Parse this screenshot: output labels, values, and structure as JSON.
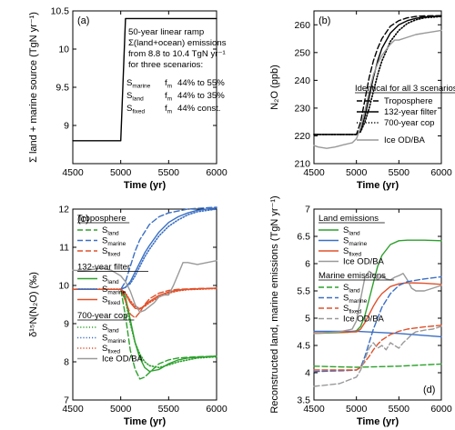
{
  "colors": {
    "land": "#2ca02c",
    "marine": "#3a6fc4",
    "fixed": "#e0502a",
    "ice": "#999999",
    "black": "#000000"
  },
  "chart_data": [
    {
      "panel": "(a)",
      "type": "line",
      "ylabel": "Σ land + marine source  (TgN yr⁻¹)",
      "xlabel": "Time (yr)",
      "xlim": [
        4500,
        6000
      ],
      "ylim": [
        8.5,
        10.5
      ],
      "xticks": [
        "4500",
        "5000",
        "5500",
        "6000"
      ],
      "yticks": [
        "9",
        "9.5",
        "10",
        "10.5"
      ],
      "series": [
        {
          "x": [
            4500,
            5000,
            5050,
            6000
          ],
          "y": [
            8.8,
            8.8,
            10.4,
            10.4
          ]
        }
      ],
      "annotation": {
        "lines": [
          "50-year linear ramp",
          "Σ(land+ocean) emissions",
          "from 8.8 to 10.4 TgN yr⁻¹",
          "for three scenarios:"
        ],
        "rows": [
          {
            "s": "S",
            "sub": "marine",
            "f": "f",
            "fsub": "m",
            "val": "44% to 55%"
          },
          {
            "s": "S",
            "sub": "land",
            "f": "f",
            "fsub": "m",
            "val": "44% to 35%"
          },
          {
            "s": "S",
            "sub": "fixed",
            "f": "f",
            "fsub": "m",
            "val": "44% const."
          }
        ]
      }
    },
    {
      "panel": "(b)",
      "type": "line",
      "ylabel": "N₂O (ppb)",
      "xlabel": "Time (yr)",
      "xlim": [
        4500,
        6000
      ],
      "ylim": [
        210,
        265
      ],
      "xticks": [
        "4500",
        "5000",
        "5500",
        "6000"
      ],
      "yticks": [
        "210",
        "220",
        "230",
        "240",
        "250",
        "260"
      ],
      "legend_title": "Identical for all 3 scenarios",
      "series": [
        {
          "name": "Troposphere",
          "style": "dashed",
          "x": [
            4500,
            5000,
            5050,
            5100,
            5150,
            5200,
            5250,
            5300,
            5400,
            5500,
            5600,
            5700,
            5800,
            6000
          ],
          "y": [
            220.5,
            220.5,
            225,
            233,
            241,
            247,
            251.5,
            255,
            259.5,
            261.5,
            262.5,
            263,
            263.2,
            263.3
          ]
        },
        {
          "name": "132-year filter",
          "style": "solid",
          "x": [
            4500,
            5000,
            5050,
            5100,
            5150,
            5200,
            5250,
            5300,
            5400,
            5500,
            5600,
            5700,
            5800,
            6000
          ],
          "y": [
            220.5,
            220.5,
            222,
            227,
            234,
            241,
            247,
            251.5,
            257,
            260,
            261.5,
            262.3,
            262.8,
            263.2
          ]
        },
        {
          "name": "700-year cop",
          "style": "dotted",
          "x": [
            4500,
            5000,
            5050,
            5100,
            5150,
            5200,
            5250,
            5300,
            5400,
            5500,
            5600,
            5700,
            5800,
            6000
          ],
          "y": [
            220.5,
            220.5,
            221.5,
            225,
            230,
            236,
            242,
            247,
            254,
            258,
            260.5,
            261.8,
            262.5,
            263
          ]
        },
        {
          "name": "Ice OD/BA",
          "style": "solid-gray",
          "x": [
            4500,
            4550,
            4650,
            4750,
            4850,
            4950,
            5000,
            5050,
            5100,
            5150,
            5200,
            5250,
            5300,
            5350,
            5400,
            5450,
            5500,
            5600,
            5700,
            5800,
            5900,
            6000
          ],
          "y": [
            216.5,
            216,
            215.5,
            216,
            216.8,
            217.5,
            219,
            223,
            229,
            236,
            242,
            246,
            249,
            251,
            253,
            254.5,
            254.5,
            255.5,
            256.5,
            257,
            257.5,
            258
          ]
        }
      ]
    },
    {
      "panel": "(c)",
      "type": "line",
      "ylabel": "δ¹⁵N(N₂O)  (‰)",
      "xlabel": "Time (yr)",
      "xlim": [
        4500,
        6000
      ],
      "ylim": [
        7,
        12
      ],
      "xticks": [
        "4500",
        "5000",
        "5500",
        "6000"
      ],
      "yticks": [
        "7",
        "8",
        "9",
        "10",
        "11",
        "12"
      ],
      "legend_groups": [
        {
          "title": "Troposphere",
          "style": "dashed",
          "items": [
            {
              "s": "S",
              "sub": "land"
            },
            {
              "s": "S",
              "sub": "marine"
            },
            {
              "s": "S",
              "sub": "fixed"
            }
          ]
        },
        {
          "title": "132-year filter",
          "style": "solid",
          "items": [
            {
              "s": "S",
              "sub": "land"
            },
            {
              "s": "S",
              "sub": "marine"
            },
            {
              "s": "S",
              "sub": "fixed"
            }
          ]
        },
        {
          "title": "700-year cop",
          "style": "dotted",
          "items": [
            {
              "s": "S",
              "sub": "land"
            },
            {
              "s": "S",
              "sub": "marine"
            },
            {
              "s": "S",
              "sub": "fixed"
            },
            {
              "s": "Ice OD/BA",
              "sub": ""
            }
          ]
        }
      ],
      "series": [
        {
          "scenario": "land",
          "style": "dashed",
          "x": [
            4500,
            5000,
            5050,
            5100,
            5150,
            5200,
            5250,
            5300,
            5400,
            5500,
            5600,
            5700,
            5800,
            6000
          ],
          "y": [
            9.9,
            9.9,
            9.2,
            8.3,
            7.8,
            7.55,
            7.6,
            7.72,
            7.95,
            8.05,
            8.1,
            8.12,
            8.13,
            8.15
          ]
        },
        {
          "scenario": "land",
          "style": "solid",
          "x": [
            4500,
            5000,
            5050,
            5100,
            5150,
            5200,
            5250,
            5300,
            5400,
            5500,
            5600,
            5700,
            5800,
            6000
          ],
          "y": [
            9.9,
            9.9,
            9.7,
            9.1,
            8.5,
            8.1,
            7.85,
            7.75,
            7.8,
            7.95,
            8.05,
            8.1,
            8.12,
            8.15
          ]
        },
        {
          "scenario": "land",
          "style": "dotted",
          "x": [
            4500,
            5000,
            5050,
            5100,
            5150,
            5200,
            5250,
            5300,
            5400,
            5500,
            5600,
            5700,
            5800,
            6000
          ],
          "y": [
            9.9,
            9.9,
            9.6,
            9.0,
            8.5,
            8.2,
            8.0,
            7.9,
            7.85,
            7.92,
            8.0,
            8.05,
            8.1,
            8.13
          ]
        },
        {
          "scenario": "marine",
          "style": "dashed",
          "x": [
            4500,
            5000,
            5050,
            5100,
            5150,
            5200,
            5250,
            5300,
            5400,
            5500,
            5600,
            5700,
            5800,
            6000
          ],
          "y": [
            9.9,
            9.9,
            10.1,
            10.5,
            10.9,
            11.2,
            11.4,
            11.6,
            11.8,
            11.9,
            11.95,
            12.0,
            12.02,
            12.05
          ]
        },
        {
          "scenario": "marine",
          "style": "solid",
          "x": [
            4500,
            5000,
            5050,
            5100,
            5150,
            5200,
            5250,
            5300,
            5400,
            5500,
            5600,
            5700,
            5800,
            6000
          ],
          "y": [
            9.9,
            9.9,
            9.95,
            10.1,
            10.35,
            10.6,
            10.85,
            11.05,
            11.4,
            11.65,
            11.8,
            11.9,
            11.97,
            12.03
          ]
        },
        {
          "scenario": "marine",
          "style": "dotted",
          "x": [
            4500,
            5000,
            5050,
            5100,
            5150,
            5200,
            5250,
            5300,
            5400,
            5500,
            5600,
            5700,
            5800,
            6000
          ],
          "y": [
            9.9,
            9.9,
            9.95,
            10.05,
            10.25,
            10.5,
            10.75,
            10.95,
            11.3,
            11.55,
            11.72,
            11.85,
            11.93,
            12.0
          ]
        },
        {
          "scenario": "fixed",
          "style": "dashed",
          "x": [
            4500,
            5000,
            5050,
            5100,
            5150,
            5200,
            5250,
            5300,
            5400,
            5500,
            5600,
            5700,
            5800,
            6000
          ],
          "y": [
            9.9,
            9.9,
            9.6,
            9.25,
            9.15,
            9.3,
            9.5,
            9.65,
            9.8,
            9.87,
            9.9,
            9.91,
            9.92,
            9.93
          ]
        },
        {
          "scenario": "fixed",
          "style": "solid",
          "x": [
            4500,
            5000,
            5050,
            5100,
            5150,
            5200,
            5250,
            5300,
            5400,
            5500,
            5600,
            5700,
            5800,
            6000
          ],
          "y": [
            9.9,
            9.9,
            9.78,
            9.55,
            9.4,
            9.38,
            9.48,
            9.58,
            9.74,
            9.83,
            9.88,
            9.9,
            9.91,
            9.93
          ]
        },
        {
          "scenario": "fixed",
          "style": "dotted",
          "x": [
            4500,
            5000,
            5050,
            5100,
            5150,
            5200,
            5250,
            5300,
            5400,
            5500,
            5600,
            5700,
            5800,
            6000
          ],
          "y": [
            9.9,
            9.9,
            9.8,
            9.6,
            9.45,
            9.4,
            9.45,
            9.55,
            9.7,
            9.8,
            9.86,
            9.89,
            9.9,
            9.92
          ]
        },
        {
          "scenario": "ice",
          "style": "solid-gray",
          "x": [
            4500,
            4600,
            4700,
            4800,
            4900,
            5000,
            5050,
            5100,
            5150,
            5200,
            5250,
            5300,
            5350,
            5400,
            5450,
            5500,
            5550,
            5600,
            5650,
            5700,
            5800,
            5900,
            6000
          ],
          "y": [
            10.4,
            10.38,
            10.42,
            10.45,
            10.4,
            10.25,
            10.1,
            9.85,
            9.5,
            9.3,
            9.35,
            9.45,
            9.55,
            9.7,
            9.75,
            9.75,
            10.0,
            10.3,
            10.6,
            10.6,
            10.55,
            10.6,
            10.65
          ]
        }
      ]
    },
    {
      "panel": "(d)",
      "type": "line",
      "ylabel": "Reconstructed land, marine emissions (TgN yr⁻¹)",
      "xlabel": "Time (yr)",
      "xlim": [
        4500,
        6000
      ],
      "ylim": [
        3.5,
        7
      ],
      "xticks": [
        "4500",
        "5000",
        "5500",
        "6000"
      ],
      "yticks": [
        "3.5",
        "4",
        "4.5",
        "5",
        "5.5",
        "6",
        "6.5",
        "7"
      ],
      "legend_groups": [
        {
          "title": "Land emissions",
          "style": "solid",
          "items": [
            {
              "s": "S",
              "sub": "land"
            },
            {
              "s": "S",
              "sub": "marine"
            },
            {
              "s": "S",
              "sub": "fixed"
            },
            {
              "s": "Ice OD/BA",
              "sub": ""
            }
          ]
        },
        {
          "title": "Marine emissions",
          "style": "dashed",
          "items": [
            {
              "s": "S",
              "sub": "land"
            },
            {
              "s": "S",
              "sub": "marine"
            },
            {
              "s": "S",
              "sub": "fixed"
            },
            {
              "s": "Ice OD/BA",
              "sub": ""
            }
          ]
        }
      ],
      "series": [
        {
          "scenario": "land",
          "style": "solid",
          "x": [
            4500,
            4900,
            5000,
            5050,
            5100,
            5150,
            5200,
            5250,
            5300,
            5400,
            5500,
            5600,
            5800,
            6000
          ],
          "y": [
            4.72,
            4.74,
            4.77,
            4.85,
            5.05,
            5.35,
            5.65,
            5.95,
            6.15,
            6.35,
            6.42,
            6.43,
            6.43,
            6.42
          ]
        },
        {
          "scenario": "marine",
          "style": "solid",
          "x": [
            4500,
            5000,
            5500,
            6000
          ],
          "y": [
            4.76,
            4.76,
            4.72,
            4.66
          ]
        },
        {
          "scenario": "fixed",
          "style": "solid",
          "x": [
            4500,
            5000,
            5050,
            5100,
            5150,
            5200,
            5250,
            5300,
            5400,
            5500,
            5600,
            5800,
            6000
          ],
          "y": [
            4.73,
            4.75,
            4.8,
            4.92,
            5.07,
            5.22,
            5.35,
            5.45,
            5.58,
            5.63,
            5.65,
            5.64,
            5.62
          ]
        },
        {
          "scenario": "ice",
          "style": "solid-gray",
          "x": [
            4500,
            4800,
            4950,
            5000,
            5050,
            5100,
            5150,
            5200,
            5250,
            5300,
            5350,
            5400,
            5450,
            5500,
            5550,
            5600,
            5650,
            5700,
            5800,
            5900,
            6000
          ],
          "y": [
            4.72,
            4.75,
            4.8,
            4.95,
            5.35,
            5.75,
            5.86,
            5.8,
            5.7,
            5.78,
            5.72,
            5.7,
            5.75,
            5.78,
            5.82,
            5.7,
            5.55,
            5.5,
            5.5,
            5.55,
            5.6
          ]
        },
        {
          "scenario": "land",
          "style": "dashed",
          "x": [
            4500,
            5000,
            5500,
            6000
          ],
          "y": [
            4.12,
            4.1,
            4.12,
            4.16
          ]
        },
        {
          "scenario": "marine",
          "style": "dashed",
          "x": [
            4500,
            4900,
            5000,
            5050,
            5100,
            5150,
            5200,
            5250,
            5300,
            5400,
            5500,
            5600,
            5800,
            6000
          ],
          "y": [
            4.02,
            4.04,
            4.05,
            4.1,
            4.3,
            4.55,
            4.8,
            5.0,
            5.2,
            5.45,
            5.6,
            5.67,
            5.72,
            5.76
          ]
        },
        {
          "scenario": "fixed",
          "style": "dashed",
          "x": [
            4500,
            5000,
            5050,
            5100,
            5150,
            5200,
            5250,
            5300,
            5400,
            5500,
            5600,
            5800,
            6000
          ],
          "y": [
            4.05,
            4.05,
            4.1,
            4.2,
            4.3,
            4.42,
            4.52,
            4.6,
            4.7,
            4.76,
            4.8,
            4.84,
            4.87
          ]
        },
        {
          "scenario": "ice",
          "style": "dashed-gray",
          "x": [
            4500,
            4800,
            5000,
            5050,
            5100,
            5150,
            5200,
            5250,
            5300,
            5350,
            5400,
            5450,
            5500,
            5550,
            5600,
            5650,
            5700,
            5800,
            5900,
            6000
          ],
          "y": [
            3.75,
            3.8,
            3.92,
            4.05,
            4.25,
            4.45,
            4.55,
            4.45,
            4.5,
            4.42,
            4.55,
            4.5,
            4.45,
            4.55,
            4.62,
            4.7,
            4.75,
            4.78,
            4.8,
            4.85
          ]
        }
      ]
    }
  ]
}
